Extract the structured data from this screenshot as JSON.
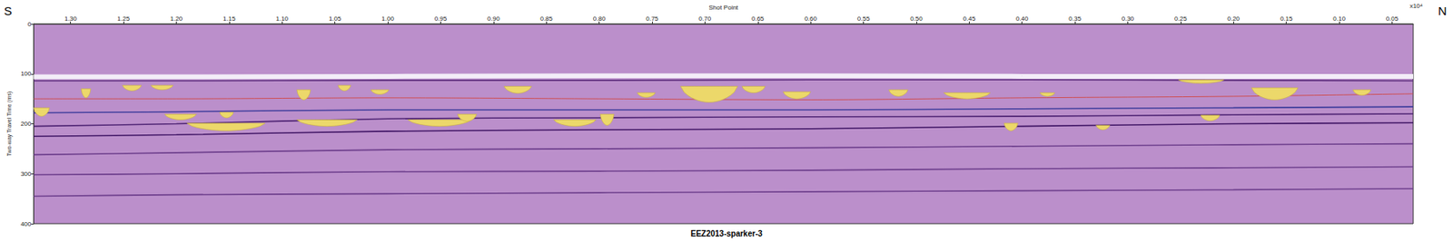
{
  "chart_data": {
    "type": "section",
    "title": "EEZ2013-sparker-3",
    "xlabel": "Shot Point",
    "ylabel": "Two-way Travel Time (ms)",
    "left_label": "S",
    "right_label": "N",
    "x_exponent_label": "x10⁴",
    "xlim": [
      1.335,
      0.03
    ],
    "xticks": [
      {
        "value": 1.3,
        "label": "1.30"
      },
      1.25,
      {
        "value": 1.2,
        "label": "1.20"
      },
      1.15,
      {
        "value": 1.1,
        "label": "1.10"
      },
      1.05,
      {
        "value": 1.0,
        "label": "1.00"
      },
      0.95,
      {
        "value": 0.9,
        "label": "0.90"
      },
      0.85,
      {
        "value": 0.8,
        "label": "0.80"
      },
      0.75,
      {
        "value": 0.7,
        "label": "0.70"
      },
      0.65,
      {
        "value": 0.6,
        "label": "0.60"
      },
      0.55,
      {
        "value": 0.5,
        "label": "0.50"
      },
      0.45,
      {
        "value": 0.4,
        "label": "0.40"
      },
      0.35,
      {
        "value": 0.3,
        "label": "0.30"
      },
      0.25,
      {
        "value": 0.2,
        "label": "0.20"
      },
      0.15,
      {
        "value": 0.1,
        "label": "0.10"
      },
      0.05
    ],
    "ylim": [
      0,
      400
    ],
    "yticks": [
      0,
      100,
      200,
      300,
      400
    ],
    "x": [
      1.335,
      1.2,
      1.0,
      0.8,
      0.6,
      0.4,
      0.2,
      0.03
    ],
    "series": [
      {
        "color": "#f6f2fa",
        "values": [
          106,
          106,
          105,
          104,
          104,
          105,
          105,
          105
        ]
      },
      {
        "color": "#5a2a7a",
        "values": [
          114,
          114,
          113,
          113,
          112,
          112,
          113,
          114
        ]
      },
      {
        "color": "#d04a4a",
        "values": [
          150,
          150,
          148,
          150,
          152,
          148,
          145,
          140
        ]
      },
      {
        "color": "#3a3a9a",
        "values": [
          178,
          176,
          172,
          172,
          172,
          170,
          168,
          166
        ]
      },
      {
        "color": "#4a2070",
        "values": [
          205,
          200,
          190,
          188,
          186,
          185,
          182,
          180
        ]
      },
      {
        "color": "#3a1060",
        "values": [
          225,
          222,
          215,
          212,
          210,
          205,
          200,
          198
        ]
      },
      {
        "color": "#6a3c8a",
        "values": [
          262,
          258,
          252,
          250,
          248,
          245,
          242,
          240
        ]
      },
      {
        "color": "#6a3c8a",
        "values": [
          302,
          300,
          296,
          295,
          293,
          290,
          288,
          286
        ]
      },
      {
        "color": "#6a3c8a",
        "values": [
          345,
          342,
          340,
          338,
          336,
          334,
          332,
          330
        ]
      }
    ],
    "body_color": "#ecd86a",
    "bodies": [
      {
        "x": [
          1.29,
          1.281
        ],
        "y": [
          130,
          148
        ]
      },
      {
        "x": [
          1.251,
          1.233
        ],
        "y": [
          123,
          134
        ]
      },
      {
        "x": [
          1.224,
          1.203
        ],
        "y": [
          123,
          132
        ]
      },
      {
        "x": [
          1.086,
          1.073
        ],
        "y": [
          132,
          152
        ]
      },
      {
        "x": [
          1.047,
          1.035
        ],
        "y": [
          123,
          134
        ]
      },
      {
        "x": [
          1.016,
          0.999
        ],
        "y": [
          132,
          141
        ]
      },
      {
        "x": [
          0.89,
          0.864
        ],
        "y": [
          125,
          139
        ]
      },
      {
        "x": [
          0.764,
          0.747
        ],
        "y": [
          138,
          147
        ]
      },
      {
        "x": [
          0.723,
          0.669
        ],
        "y": [
          125,
          157
        ]
      },
      {
        "x": [
          0.665,
          0.643
        ],
        "y": [
          125,
          138
        ]
      },
      {
        "x": [
          0.626,
          0.6
        ],
        "y": [
          136,
          150
        ]
      },
      {
        "x": [
          0.526,
          0.508
        ],
        "y": [
          132,
          145
        ]
      },
      {
        "x": [
          0.474,
          0.43
        ],
        "y": [
          138,
          150
        ]
      },
      {
        "x": [
          0.383,
          0.369
        ],
        "y": [
          138,
          145
        ]
      },
      {
        "x": [
          0.252,
          0.209
        ],
        "y": [
          112,
          119
        ]
      },
      {
        "x": [
          0.183,
          0.139
        ],
        "y": [
          128,
          152
        ]
      },
      {
        "x": [
          0.087,
          0.07
        ],
        "y": [
          132,
          143
        ]
      },
      {
        "x": [
          1.335,
          1.32
        ],
        "y": [
          168,
          185
        ]
      },
      {
        "x": [
          1.211,
          1.181
        ],
        "y": [
          181,
          192
        ]
      },
      {
        "x": [
          1.19,
          1.116
        ],
        "y": [
          199,
          214
        ]
      },
      {
        "x": [
          1.159,
          1.146
        ],
        "y": [
          177,
          188
        ]
      },
      {
        "x": [
          1.086,
          1.029
        ],
        "y": [
          192,
          205
        ]
      },
      {
        "x": [
          0.981,
          0.921
        ],
        "y": [
          192,
          205
        ]
      },
      {
        "x": [
          0.934,
          0.916
        ],
        "y": [
          181,
          195
        ]
      },
      {
        "x": [
          0.843,
          0.803
        ],
        "y": [
          192,
          205
        ]
      },
      {
        "x": [
          0.799,
          0.786
        ],
        "y": [
          181,
          203
        ]
      },
      {
        "x": [
          0.417,
          0.404
        ],
        "y": [
          199,
          214
        ]
      },
      {
        "x": [
          0.33,
          0.317
        ],
        "y": [
          203,
          212
        ]
      },
      {
        "x": [
          0.231,
          0.213
        ],
        "y": [
          183,
          194
        ]
      }
    ]
  }
}
